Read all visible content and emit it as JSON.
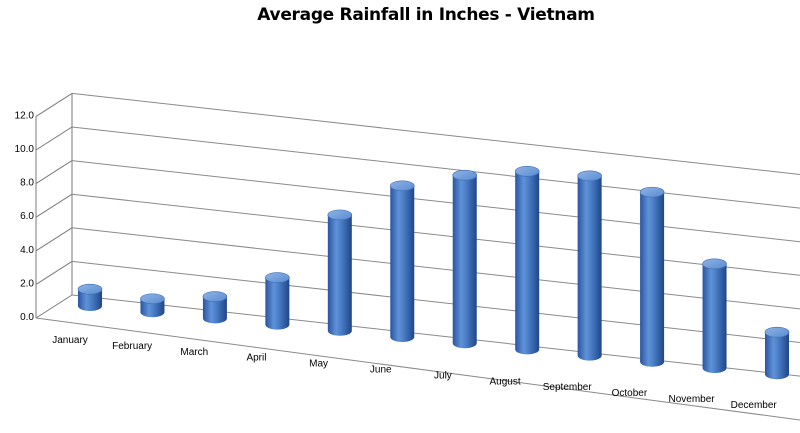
{
  "chart_data": {
    "type": "bar",
    "title": "Average Rainfall in Inches - Vietnam",
    "xlabel": "",
    "ylabel": "",
    "categories": [
      "January",
      "February",
      "March",
      "April",
      "May",
      "June",
      "July",
      "August",
      "September",
      "October",
      "November",
      "December"
    ],
    "values": [
      1.0,
      0.8,
      1.3,
      2.8,
      6.9,
      9.0,
      10.0,
      10.6,
      10.7,
      10.1,
      6.2,
      2.5
    ],
    "yticks": [
      "0.0",
      "2.0",
      "4.0",
      "6.0",
      "8.0",
      "10.0",
      "12.0"
    ],
    "ylim": [
      0,
      12
    ],
    "grid": true,
    "legend": "none",
    "bar_style": "3d-cylinder",
    "bar_color": "#4a7ec7"
  }
}
